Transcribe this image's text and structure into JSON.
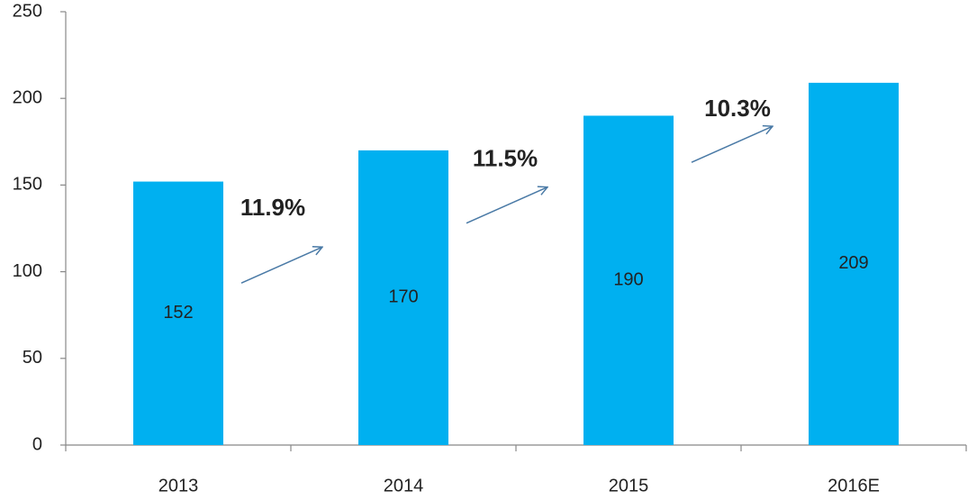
{
  "chart_data": {
    "type": "bar",
    "categories": [
      "2013",
      "2014",
      "2015",
      "2016E"
    ],
    "values": [
      152,
      170,
      190,
      209
    ],
    "color": "#00b0f0",
    "ylim": [
      0,
      250
    ],
    "yticks": [
      0,
      50,
      100,
      150,
      200,
      250
    ],
    "grid": false,
    "annotations": [
      "11.9%",
      "11.5%",
      "10.3%"
    ]
  }
}
